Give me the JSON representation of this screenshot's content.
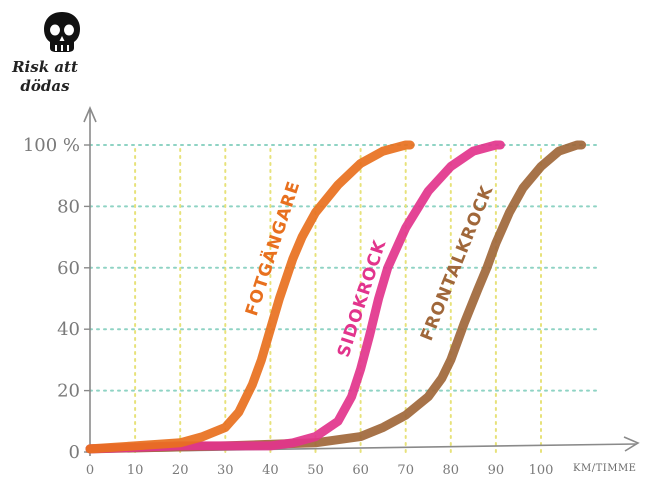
{
  "chart_data": {
    "type": "line",
    "ylabel_line1": "Risk att",
    "ylabel_line2": "dödas",
    "xunit": "KM/TIMME",
    "x_ticks": [
      0,
      10,
      20,
      30,
      40,
      50,
      60,
      70,
      80,
      90,
      100
    ],
    "y_ticks": [
      0,
      20,
      40,
      60,
      80,
      100
    ],
    "y_tick_labels": [
      "0",
      "20",
      "40",
      "60",
      "80",
      "100 %"
    ],
    "xlim": [
      0,
      120
    ],
    "ylim": [
      0,
      100
    ],
    "grid": true,
    "series": [
      {
        "name": "FOTGÄNGARE",
        "color": "#e8701e",
        "points": [
          [
            0,
            1
          ],
          [
            10,
            2
          ],
          [
            20,
            3
          ],
          [
            25,
            5
          ],
          [
            30,
            8
          ],
          [
            33,
            13
          ],
          [
            36,
            22
          ],
          [
            38,
            30
          ],
          [
            40,
            40
          ],
          [
            42,
            50
          ],
          [
            45,
            63
          ],
          [
            47,
            70
          ],
          [
            50,
            78
          ],
          [
            55,
            87
          ],
          [
            60,
            94
          ],
          [
            65,
            98
          ],
          [
            70,
            100
          ],
          [
            71,
            100
          ]
        ]
      },
      {
        "name": "SIDOKROCK",
        "color": "#e2348c",
        "points": [
          [
            0,
            1
          ],
          [
            20,
            2
          ],
          [
            40,
            2
          ],
          [
            45,
            3
          ],
          [
            50,
            5
          ],
          [
            55,
            10
          ],
          [
            58,
            18
          ],
          [
            60,
            27
          ],
          [
            62,
            38
          ],
          [
            64,
            50
          ],
          [
            66,
            60
          ],
          [
            70,
            73
          ],
          [
            75,
            85
          ],
          [
            80,
            93
          ],
          [
            85,
            98
          ],
          [
            90,
            100
          ],
          [
            91,
            100
          ]
        ]
      },
      {
        "name": "FRONTALKROCK",
        "color": "#a0673a",
        "points": [
          [
            0,
            1
          ],
          [
            30,
            2
          ],
          [
            50,
            3
          ],
          [
            60,
            5
          ],
          [
            65,
            8
          ],
          [
            70,
            12
          ],
          [
            75,
            18
          ],
          [
            78,
            24
          ],
          [
            80,
            30
          ],
          [
            83,
            42
          ],
          [
            86,
            53
          ],
          [
            88,
            60
          ],
          [
            90,
            68
          ],
          [
            93,
            78
          ],
          [
            96,
            86
          ],
          [
            100,
            93
          ],
          [
            104,
            98
          ],
          [
            108,
            100
          ],
          [
            109,
            100
          ]
        ]
      }
    ]
  },
  "icons": {
    "skull": "skull-icon"
  }
}
